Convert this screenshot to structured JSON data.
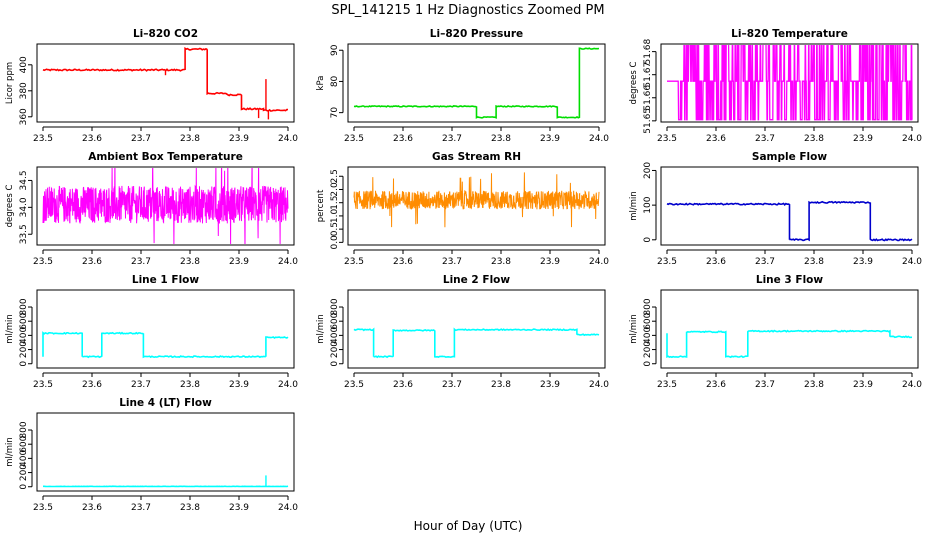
{
  "figure": {
    "title": "SPL_141215  1 Hz Diagnostics Zoomed PM",
    "xlabel": "Hour of Day (UTC)"
  },
  "chart_data": [
    {
      "type": "line",
      "title": "Li–820 CO2",
      "ylabel": "Licor ppm",
      "color": "#ff0000",
      "xlim": [
        23.5,
        24.0
      ],
      "ylim": [
        356,
        416
      ],
      "xticks": [
        "23.5",
        "23.6",
        "23.7",
        "23.8",
        "23.9",
        "24.0"
      ],
      "yticks": [
        "360",
        "380",
        "400"
      ],
      "yticks_values": [
        360,
        380,
        400
      ],
      "noise": 0.6,
      "x": [
        23.5,
        23.79,
        23.79,
        23.835,
        23.835,
        23.875,
        23.875,
        23.905,
        23.905,
        23.95,
        23.95,
        24.0
      ],
      "y": [
        396,
        396,
        412,
        412,
        378,
        378,
        377,
        377,
        366,
        366,
        365,
        365
      ],
      "spikes": [
        [
          23.75,
          392
        ],
        [
          23.94,
          359
        ],
        [
          23.955,
          389
        ],
        [
          23.96,
          358
        ]
      ]
    },
    {
      "type": "line",
      "title": "Li–820 Pressure",
      "ylabel": "kPa",
      "color": "#00dd00",
      "xlim": [
        23.5,
        24.0
      ],
      "ylim": [
        67,
        92
      ],
      "xticks": [
        "23.5",
        "23.6",
        "23.7",
        "23.8",
        "23.9",
        "24.0"
      ],
      "yticks": [
        "70",
        "80",
        "90"
      ],
      "yticks_values": [
        70,
        80,
        90
      ],
      "noise": 0.15,
      "x": [
        23.5,
        23.75,
        23.75,
        23.79,
        23.79,
        23.915,
        23.915,
        23.96,
        23.96,
        24.0
      ],
      "y": [
        72,
        72,
        68.5,
        68.5,
        72,
        72,
        68.5,
        68.5,
        90.5,
        90.5
      ]
    },
    {
      "type": "band",
      "title": "Li–820 Temperature",
      "ylabel": "degrees C",
      "color": "#ff00ff",
      "xlim": [
        23.5,
        24.0
      ],
      "ylim": [
        51.6495,
        51.6833
      ],
      "xticks": [
        "23.5",
        "23.6",
        "23.7",
        "23.8",
        "23.9",
        "24.0"
      ],
      "yticks": [
        "51.65",
        "51.66",
        "51.67",
        "51.68"
      ],
      "yticks_values": [
        51.65,
        51.66,
        51.67,
        51.68
      ],
      "levels": [
        51.6505,
        51.6672,
        51.6833
      ]
    },
    {
      "type": "noise",
      "title": "Ambient Box Temperature",
      "ylabel": "degrees C",
      "color": "#ff00ff",
      "xlim": [
        23.5,
        24.0
      ],
      "ylim": [
        33.3,
        34.75
      ],
      "xticks": [
        "23.5",
        "23.6",
        "23.7",
        "23.8",
        "23.9",
        "24.0"
      ],
      "yticks": [
        "33.5",
        "34.0",
        "34.5"
      ],
      "yticks_values": [
        33.5,
        34.0,
        34.5
      ],
      "center": 34.05,
      "amplitude": 0.35
    },
    {
      "type": "noise",
      "title": "Gas Stream RH",
      "ylabel": "percent",
      "color": "#ff8c00",
      "xlim": [
        23.5,
        24.0
      ],
      "ylim": [
        -0.1,
        2.85
      ],
      "xticks": [
        "23.5",
        "23.6",
        "23.7",
        "23.8",
        "23.9",
        "24.0"
      ],
      "yticks": [
        "0.0",
        "0.5",
        "1.0",
        "1.5",
        "2.0",
        "2.5"
      ],
      "yticks_values": [
        0,
        0.5,
        1,
        1.5,
        2,
        2.5
      ],
      "center": 1.6,
      "amplitude": 0.35
    },
    {
      "type": "line",
      "title": "Sample Flow",
      "ylabel": "ml/min",
      "color": "#0000cc",
      "xlim": [
        23.5,
        24.0
      ],
      "ylim": [
        -15,
        210
      ],
      "xticks": [
        "23.5",
        "23.6",
        "23.7",
        "23.8",
        "23.9",
        "24.0"
      ],
      "yticks": [
        "0",
        "100",
        "200"
      ],
      "yticks_values": [
        0,
        100,
        200
      ],
      "noise": 2,
      "x": [
        23.5,
        23.75,
        23.75,
        23.79,
        23.79,
        23.915,
        23.915,
        24.0
      ],
      "y": [
        103,
        103,
        0,
        0,
        108,
        108,
        0,
        0
      ]
    },
    {
      "type": "line",
      "title": "Line 1 Flow",
      "ylabel": "ml/min",
      "color": "#00ffff",
      "xlim": [
        23.5,
        24.0
      ],
      "ylim": [
        -60,
        1040
      ],
      "xticks": [
        "23.5",
        "23.6",
        "23.7",
        "23.8",
        "23.9",
        "24.0"
      ],
      "yticks": [
        "0",
        "200",
        "400",
        "600",
        "800"
      ],
      "yticks_values": [
        0,
        200,
        400,
        600,
        800
      ],
      "noise": 8,
      "x": [
        23.5,
        23.5,
        23.58,
        23.58,
        23.62,
        23.62,
        23.705,
        23.705,
        23.955,
        23.955,
        24.0
      ],
      "y": [
        100,
        430,
        430,
        100,
        100,
        430,
        430,
        100,
        100,
        370,
        370
      ]
    },
    {
      "type": "line",
      "title": "Line 2 Flow",
      "ylabel": "ml/min",
      "color": "#00ffff",
      "xlim": [
        23.5,
        24.0
      ],
      "ylim": [
        -60,
        1040
      ],
      "xticks": [
        "23.5",
        "23.6",
        "23.7",
        "23.8",
        "23.9",
        "24.0"
      ],
      "yticks": [
        "0",
        "200",
        "400",
        "600",
        "800"
      ],
      "yticks_values": [
        0,
        200,
        400,
        600,
        800
      ],
      "noise": 8,
      "x": [
        23.5,
        23.54,
        23.54,
        23.58,
        23.58,
        23.665,
        23.665,
        23.705,
        23.705,
        23.955,
        23.955,
        24.0
      ],
      "y": [
        480,
        480,
        100,
        100,
        470,
        470,
        100,
        100,
        480,
        480,
        410,
        410
      ]
    },
    {
      "type": "line",
      "title": "Line 3 Flow",
      "ylabel": "ml/min",
      "color": "#00ffff",
      "xlim": [
        23.5,
        24.0
      ],
      "ylim": [
        -60,
        1040
      ],
      "xticks": [
        "23.5",
        "23.6",
        "23.7",
        "23.8",
        "23.9",
        "24.0"
      ],
      "yticks": [
        "0",
        "200",
        "400",
        "600",
        "800"
      ],
      "yticks_values": [
        0,
        200,
        400,
        600,
        800
      ],
      "noise": 8,
      "x": [
        23.5,
        23.5,
        23.54,
        23.54,
        23.62,
        23.62,
        23.665,
        23.665,
        23.955,
        23.955,
        24.0
      ],
      "y": [
        430,
        100,
        100,
        450,
        450,
        100,
        100,
        460,
        460,
        380,
        380
      ]
    },
    {
      "type": "line",
      "title": "Line 4 (LT) Flow",
      "ylabel": "ml/min",
      "color": "#00ffff",
      "xlim": [
        23.5,
        24.0
      ],
      "ylim": [
        -60,
        1040
      ],
      "xticks": [
        "23.5",
        "23.6",
        "23.7",
        "23.8",
        "23.9",
        "24.0"
      ],
      "yticks": [
        "0",
        "200",
        "400",
        "600",
        "800"
      ],
      "yticks_values": [
        0,
        200,
        400,
        600,
        800
      ],
      "noise": 2,
      "x": [
        23.5,
        24.0
      ],
      "y": [
        5,
        5
      ],
      "spikes": [
        [
          23.955,
          160
        ]
      ]
    }
  ]
}
